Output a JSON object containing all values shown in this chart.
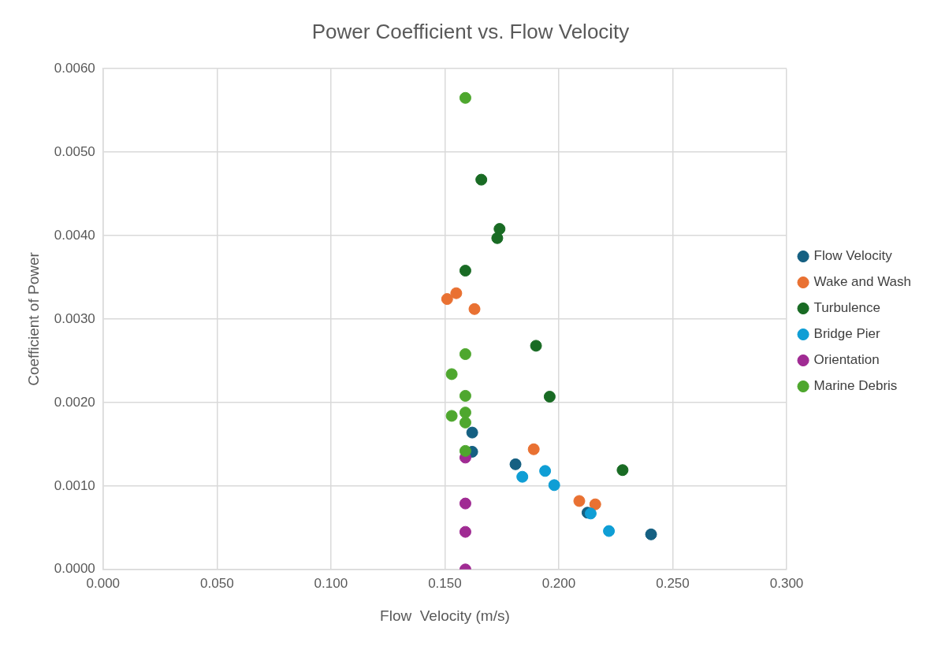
{
  "chart_data": {
    "type": "scatter",
    "title": "Power Coefficient vs. Flow Velocity",
    "xlabel": "Flow  Velocity (m/s)",
    "ylabel": "Coefficient of Power",
    "xlim": [
      0,
      0.3
    ],
    "xticks": [
      {
        "value": 0,
        "label": "0.000"
      },
      {
        "value": 0.05,
        "label": "0.050"
      },
      {
        "value": 0.1,
        "label": "0.100"
      },
      {
        "value": 0.15,
        "label": "0.150"
      },
      {
        "value": 0.2,
        "label": "0.200"
      },
      {
        "value": 0.25,
        "label": "0.250"
      },
      {
        "value": 0.3,
        "label": "0.300"
      }
    ],
    "ylim": [
      0,
      0.006
    ],
    "yticks": [
      {
        "value": 0,
        "label": "0.0000"
      },
      {
        "value": 0.001,
        "label": "0.0010"
      },
      {
        "value": 0.002,
        "label": "0.0020"
      },
      {
        "value": 0.003,
        "label": "0.0030"
      },
      {
        "value": 0.004,
        "label": "0.0040"
      },
      {
        "value": 0.005,
        "label": "0.0050"
      },
      {
        "value": 0.006,
        "label": "0.0060"
      }
    ],
    "grid": true,
    "legend": "right",
    "marker": "circle",
    "series": [
      {
        "name": "Flow Velocity",
        "color": "#156082",
        "x": [
          0.162,
          0.162,
          0.181,
          0.2126,
          0.2405
        ],
        "values": [
          0.00164,
          0.00141,
          0.00126,
          0.00068,
          0.00042
        ]
      },
      {
        "name": "Wake and Wash",
        "color": "#e97132",
        "x": [
          0.151,
          0.155,
          0.163,
          0.189,
          0.209,
          0.216
        ],
        "values": [
          0.00324,
          0.00331,
          0.00312,
          0.00144,
          0.00082,
          0.00078
        ]
      },
      {
        "name": "Turbulence",
        "color": "#196b24",
        "x": [
          0.166,
          0.174,
          0.173,
          0.159,
          0.19,
          0.196,
          0.228
        ],
        "values": [
          0.00467,
          0.00408,
          0.00397,
          0.00358,
          0.00268,
          0.00207,
          0.00119
        ]
      },
      {
        "name": "Bridge Pier",
        "color": "#0f9ed5",
        "x": [
          0.184,
          0.194,
          0.198,
          0.214,
          0.222
        ],
        "values": [
          0.00111,
          0.00118,
          0.00101,
          0.00067,
          0.00046
        ]
      },
      {
        "name": "Orientation",
        "color": "#a02b93",
        "x": [
          0.159,
          0.159,
          0.159,
          0.159
        ],
        "values": [
          0.00134,
          0.00079,
          0.00045,
          0
        ]
      },
      {
        "name": "Marine Debris",
        "color": "#4ea72e",
        "x": [
          0.159,
          0.159,
          0.153,
          0.159,
          0.153,
          0.159,
          0.159,
          0.159
        ],
        "values": [
          0.00565,
          0.00258,
          0.00234,
          0.00208,
          0.00184,
          0.00188,
          0.00176,
          0.00142
        ]
      }
    ]
  }
}
